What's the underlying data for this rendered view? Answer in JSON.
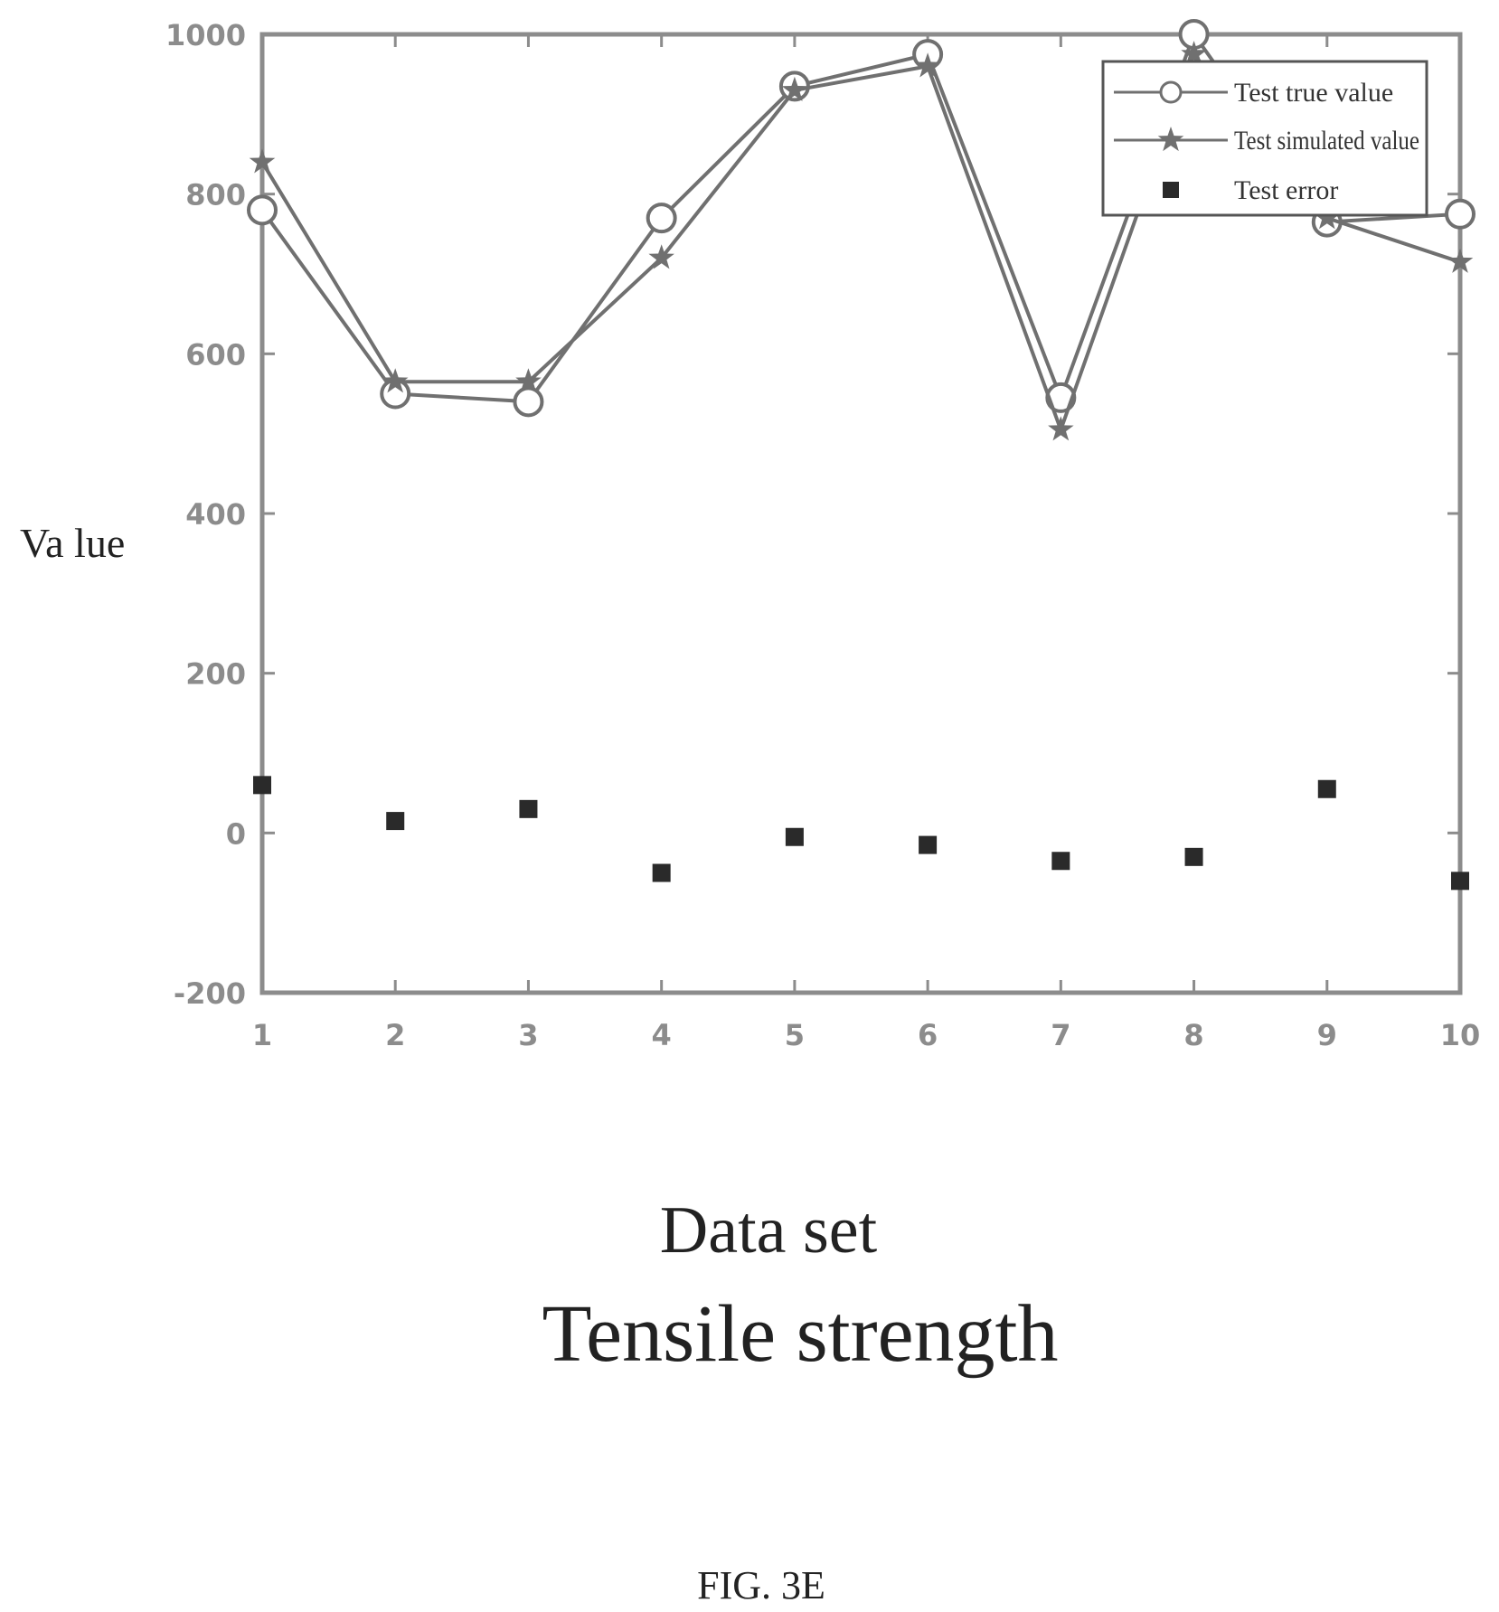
{
  "chart_data": {
    "type": "line",
    "title": "Tensile strength",
    "xlabel": "Data set",
    "ylabel": "Va lue",
    "x": [
      1,
      2,
      3,
      4,
      5,
      6,
      7,
      8,
      9,
      10
    ],
    "xlim": [
      1,
      10
    ],
    "ylim": [
      -200,
      1000
    ],
    "xticks": [
      "1",
      "2",
      "3",
      "4",
      "5",
      "6",
      "7",
      "8",
      "9",
      "10"
    ],
    "yticks": [
      "-200",
      "0",
      "200",
      "400",
      "600",
      "800",
      "1000"
    ],
    "grid": false,
    "legend_position": "top-right",
    "series": [
      {
        "name": "Test true value",
        "marker": "circle",
        "values": [
          780,
          550,
          540,
          770,
          935,
          975,
          545,
          1000,
          765,
          775
        ]
      },
      {
        "name": "Test simulated value",
        "marker": "star",
        "values": [
          840,
          565,
          565,
          720,
          930,
          960,
          505,
          975,
          770,
          715
        ]
      },
      {
        "name": "Test error",
        "marker": "square",
        "values": [
          60,
          15,
          30,
          -50,
          -5,
          -15,
          -35,
          -30,
          55,
          -60
        ]
      }
    ],
    "colors": {
      "line": "#707070",
      "error_marker": "#2a2a2a",
      "axis": "#8c8c8c"
    }
  },
  "figure_label": "FIG. 3E"
}
